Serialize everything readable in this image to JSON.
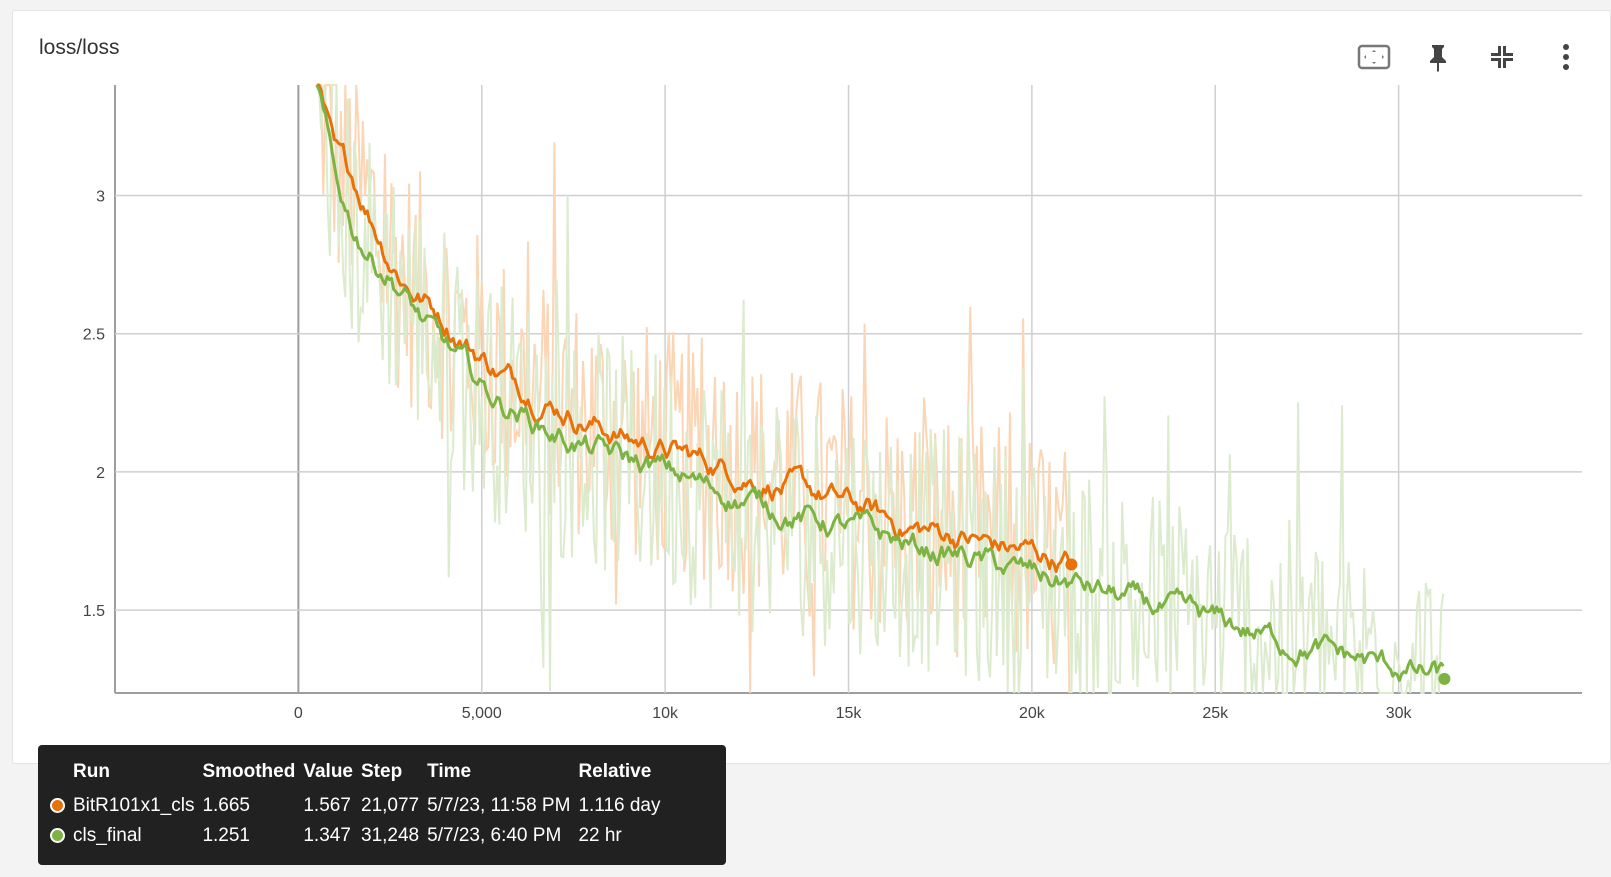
{
  "card": {
    "title": "loss/loss",
    "tools": [
      "fit-domain-icon",
      "pin-icon",
      "collapse-icon",
      "more-vert-icon"
    ]
  },
  "chart_data": {
    "type": "line",
    "title": "loss/loss",
    "xlabel": "",
    "ylabel": "",
    "x_ticks": [
      "0",
      "5,000",
      "10k",
      "15k",
      "20k",
      "25k",
      "30k"
    ],
    "y_ticks": [
      "1.5",
      "2",
      "2.5",
      "3"
    ],
    "xlim": [
      -5000,
      35000
    ],
    "ylim": [
      1.2,
      3.4
    ],
    "grid": true,
    "series": [
      {
        "name": "BitR101x1_cls",
        "color": "#e8710a",
        "raw_color": "#fbd6b6",
        "x": [
          500,
          1000,
          1500,
          2000,
          2500,
          3000,
          3500,
          4000,
          4500,
          5000,
          5500,
          6000,
          6500,
          7000,
          7500,
          8000,
          8500,
          9000,
          9500,
          10000,
          10500,
          11000,
          11500,
          12000,
          12500,
          13000,
          13500,
          14000,
          14500,
          15000,
          15500,
          16000,
          16500,
          17000,
          17500,
          18000,
          18500,
          19000,
          19500,
          20000,
          20500,
          21077
        ],
        "y": [
          3.4,
          3.12,
          3.05,
          2.92,
          2.78,
          2.68,
          2.62,
          2.55,
          2.48,
          2.42,
          2.36,
          2.32,
          2.28,
          2.25,
          2.21,
          2.18,
          2.15,
          2.12,
          2.1,
          2.08,
          2.06,
          2.04,
          2.02,
          2.0,
          1.98,
          1.96,
          1.94,
          1.92,
          1.9,
          1.88,
          1.86,
          1.83,
          1.8,
          1.79,
          1.78,
          1.77,
          1.75,
          1.73,
          1.72,
          1.71,
          1.69,
          1.665
        ]
      },
      {
        "name": "cls_final",
        "color": "#7cb342",
        "raw_color": "#dcebce",
        "x": [
          500,
          1000,
          1500,
          2000,
          2500,
          3000,
          3500,
          4000,
          4500,
          5000,
          5500,
          6000,
          6500,
          7000,
          7500,
          8000,
          8500,
          9000,
          9500,
          10000,
          10500,
          11000,
          11500,
          12000,
          12500,
          13000,
          13500,
          14000,
          14500,
          15000,
          15500,
          16000,
          16500,
          17000,
          17500,
          18000,
          18500,
          19000,
          19500,
          20000,
          20500,
          21000,
          21500,
          22000,
          22500,
          23000,
          23500,
          24000,
          24500,
          25000,
          25500,
          26000,
          26500,
          27000,
          27500,
          28000,
          28500,
          29000,
          29500,
          30000,
          30500,
          31248
        ],
        "y": [
          3.4,
          3.05,
          2.88,
          2.78,
          2.72,
          2.62,
          2.52,
          2.45,
          2.38,
          2.3,
          2.25,
          2.22,
          2.18,
          2.14,
          2.11,
          2.08,
          2.06,
          2.04,
          2.02,
          2.0,
          1.98,
          1.95,
          1.93,
          1.91,
          1.89,
          1.87,
          1.85,
          1.83,
          1.81,
          1.8,
          1.78,
          1.76,
          1.74,
          1.72,
          1.71,
          1.7,
          1.68,
          1.66,
          1.64,
          1.63,
          1.61,
          1.6,
          1.58,
          1.56,
          1.54,
          1.52,
          1.5,
          1.48,
          1.47,
          1.45,
          1.44,
          1.42,
          1.4,
          1.38,
          1.37,
          1.35,
          1.33,
          1.32,
          1.3,
          1.29,
          1.27,
          1.251
        ]
      }
    ]
  },
  "tooltip": {
    "headers": [
      "Run",
      "Smoothed",
      "Value",
      "Step",
      "Time",
      "Relative"
    ],
    "rows": [
      {
        "color": "#e8710a",
        "run": "BitR101x1_cls",
        "smoothed": "1.665",
        "value": "1.567",
        "step": "21,077",
        "time": "5/7/23, 11:58 PM",
        "relative": "1.116 day"
      },
      {
        "color": "#7cb342",
        "run": "cls_final",
        "smoothed": "1.251",
        "value": "1.347",
        "step": "31,248",
        "time": "5/7/23, 6:40 PM",
        "relative": "22 hr"
      }
    ]
  }
}
